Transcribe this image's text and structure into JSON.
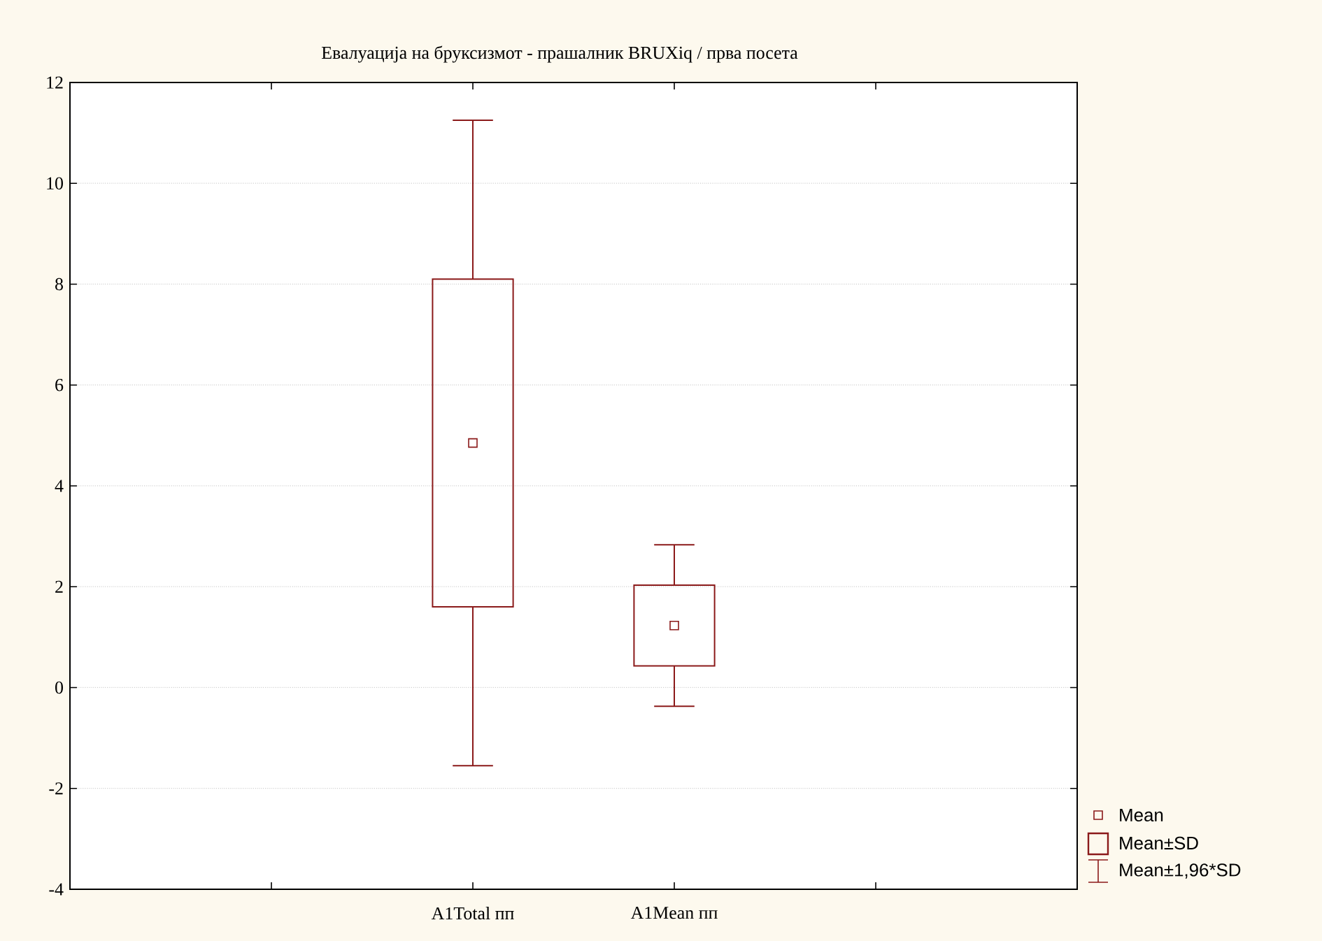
{
  "chart_data": {
    "type": "box",
    "title": "Евалуација на бруксизмот - прашалник BRUXiq / прва посета",
    "categories": [
      "A1Total пп",
      "A1Mean пп"
    ],
    "color": "#8b1a1a",
    "boxes": [
      {
        "low": -1.55,
        "q1": 1.6,
        "q3": 8.1,
        "high": 11.25,
        "mean": 4.85
      },
      {
        "low": -0.37,
        "q1": 0.43,
        "q3": 2.03,
        "high": 2.83,
        "mean": 1.23
      }
    ],
    "ylim": [
      -4,
      12
    ],
    "yticks": [
      -4,
      -2,
      0,
      2,
      4,
      6,
      8,
      10,
      12
    ],
    "grid": "y",
    "annotations": [
      "Mean",
      "Mean±SD",
      "Mean±1,96*SD"
    ]
  }
}
